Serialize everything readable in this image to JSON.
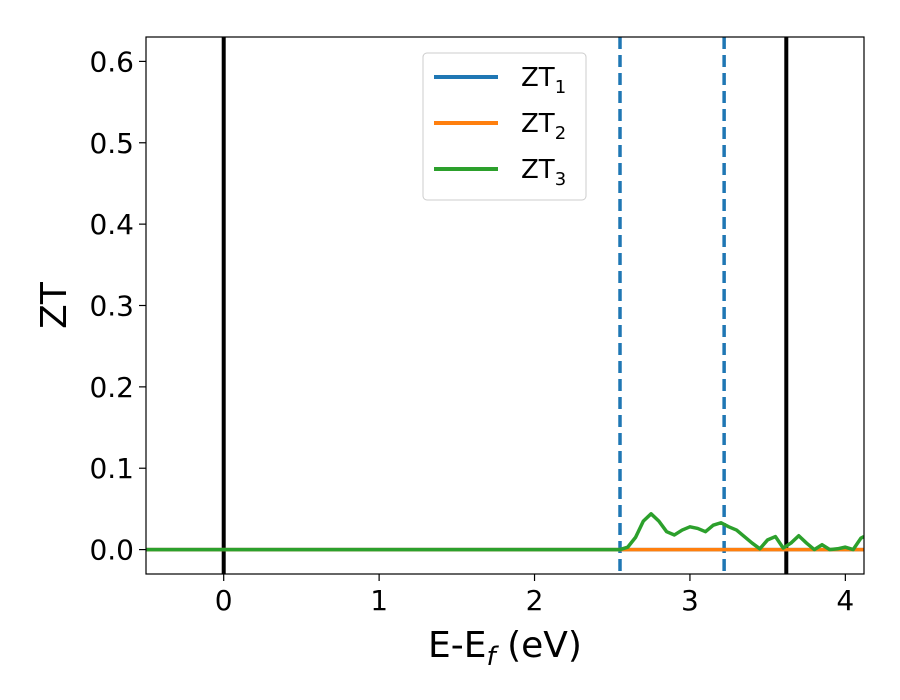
{
  "chart_data": {
    "type": "line",
    "xlabel_main": "E-E",
    "xlabel_sub": "f",
    "xlabel_unit": " (eV)",
    "ylabel": "ZT",
    "xlim": [
      -0.5,
      4.12
    ],
    "ylim": [
      -0.03,
      0.63
    ],
    "x_ticks": [
      0,
      1,
      2,
      3,
      4
    ],
    "x_tick_labels": [
      "0",
      "1",
      "2",
      "3",
      "4"
    ],
    "y_ticks": [
      0.0,
      0.1,
      0.2,
      0.3,
      0.4,
      0.5,
      0.6
    ],
    "y_tick_labels": [
      "0.0",
      "0.1",
      "0.2",
      "0.3",
      "0.4",
      "0.5",
      "0.6"
    ],
    "grid": false,
    "legend_position": "top-center",
    "vertical_lines": [
      {
        "x": 0.0,
        "style": "solid",
        "color": "#000000"
      },
      {
        "x": 3.62,
        "style": "solid",
        "color": "#000000"
      },
      {
        "x": 2.55,
        "style": "dashed",
        "color": "#1f77b4"
      },
      {
        "x": 3.22,
        "style": "dashed",
        "color": "#1f77b4"
      }
    ],
    "series": [
      {
        "name_main": "ZT",
        "name_sub": "1",
        "color": "#1f77b4",
        "points": [
          [
            -0.5,
            0.0
          ],
          [
            4.12,
            0.0
          ]
        ]
      },
      {
        "name_main": "ZT",
        "name_sub": "2",
        "color": "#ff7f0e",
        "points": [
          [
            -0.5,
            0.0
          ],
          [
            4.12,
            0.0
          ]
        ]
      },
      {
        "name_main": "ZT",
        "name_sub": "3",
        "color": "#2ca02c",
        "points": [
          [
            -0.5,
            0.0
          ],
          [
            2.55,
            0.0
          ],
          [
            2.6,
            0.003
          ],
          [
            2.65,
            0.015
          ],
          [
            2.7,
            0.035
          ],
          [
            2.75,
            0.044
          ],
          [
            2.8,
            0.035
          ],
          [
            2.85,
            0.022
          ],
          [
            2.9,
            0.018
          ],
          [
            2.95,
            0.024
          ],
          [
            3.0,
            0.028
          ],
          [
            3.05,
            0.026
          ],
          [
            3.1,
            0.022
          ],
          [
            3.15,
            0.03
          ],
          [
            3.2,
            0.033
          ],
          [
            3.25,
            0.028
          ],
          [
            3.3,
            0.024
          ],
          [
            3.35,
            0.016
          ],
          [
            3.4,
            0.008
          ],
          [
            3.45,
            0.001
          ],
          [
            3.5,
            0.012
          ],
          [
            3.55,
            0.016
          ],
          [
            3.6,
            0.002
          ],
          [
            3.65,
            0.008
          ],
          [
            3.7,
            0.017
          ],
          [
            3.75,
            0.008
          ],
          [
            3.8,
            0.0
          ],
          [
            3.85,
            0.006
          ],
          [
            3.9,
            0.0
          ],
          [
            3.95,
            0.001
          ],
          [
            4.0,
            0.003
          ],
          [
            4.05,
            0.0
          ],
          [
            4.1,
            0.014
          ],
          [
            4.12,
            0.016
          ]
        ]
      }
    ]
  }
}
